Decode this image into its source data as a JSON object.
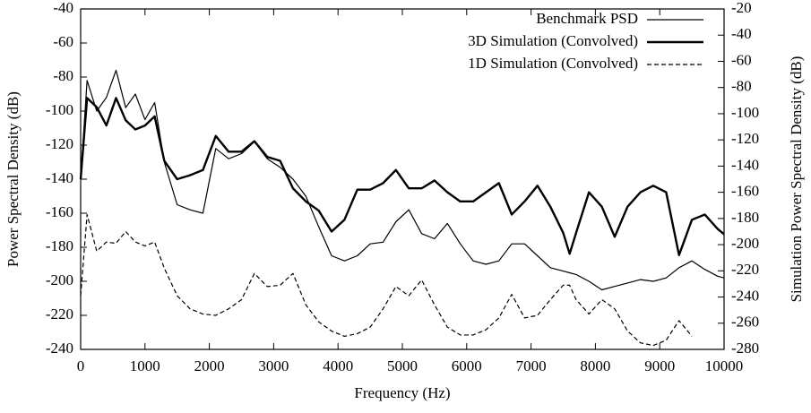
{
  "chart_data": {
    "type": "line",
    "xlabel": "Frequency (Hz)",
    "ylabel": "Power Spectral Density (dB)",
    "y2label": "Simulation Power Spectral Density (dB)",
    "x": [
      0,
      100,
      250,
      400,
      550,
      700,
      850,
      1000,
      1150,
      1300,
      1500,
      1700,
      1900,
      2100,
      2300,
      2500,
      2700,
      2900,
      3100,
      3300,
      3500,
      3700,
      3900,
      4100,
      4300,
      4500,
      4700,
      4900,
      5100,
      5300,
      5500,
      5700,
      5900,
      6100,
      6300,
      6500,
      6700,
      6900,
      7100,
      7300,
      7500,
      7600,
      7700,
      7900,
      8100,
      8300,
      8500,
      8700,
      8900,
      9100,
      9300,
      9500,
      9700,
      9900,
      10000
    ],
    "series": [
      {
        "name": "Benchmark PSD",
        "color": "#000000",
        "width": 1.2,
        "dash": "none",
        "axis": "y",
        "values": [
          -140,
          -82,
          -100,
          -92,
          -76,
          -98,
          -90,
          -105,
          -95,
          -130,
          -155,
          -158,
          -160,
          -122,
          -128,
          -125,
          -118,
          -128,
          -133,
          -140,
          -150,
          -168,
          -185,
          -188,
          -185,
          -178,
          -177,
          -165,
          -158,
          -172,
          -175,
          -166,
          -178,
          -188,
          -190,
          -188,
          -178,
          -178,
          -185,
          -192,
          -194,
          -195,
          -196,
          -200,
          -205,
          -203,
          -201,
          -199,
          -200,
          -198,
          -192,
          -188,
          -193,
          -197,
          -198
        ]
      },
      {
        "name": "3D Simulation (Convolved)",
        "color": "#000000",
        "width": 2.4,
        "dash": "none",
        "axis": "y2",
        "values": [
          -150,
          -88,
          -95,
          -109,
          -88,
          -105,
          -112,
          -109,
          -102,
          -136,
          -150,
          -147,
          -143,
          -117,
          -129,
          -129,
          -121,
          -133,
          -136,
          -157,
          -167,
          -174,
          -190,
          -181,
          -158,
          -158,
          -153,
          -143,
          -157,
          -157,
          -151,
          -160,
          -167,
          -167,
          -160,
          -153,
          -177,
          -167,
          -155,
          -171,
          -191,
          -207,
          -191,
          -160,
          -171,
          -194,
          -171,
          -160,
          -155,
          -160,
          -208,
          -181,
          -177,
          -188,
          -192
        ]
      },
      {
        "name": "1D Simulation (Convolved)",
        "color": "#000000",
        "width": 1.2,
        "dash": "5,3",
        "axis": "y2",
        "values": [
          -239,
          -177,
          -205,
          -198,
          -199,
          -190,
          -198,
          -201,
          -198,
          -218,
          -239,
          -249,
          -253,
          -254,
          -249,
          -242,
          -222,
          -232,
          -231,
          -222,
          -246,
          -259,
          -266,
          -270,
          -268,
          -263,
          -249,
          -232,
          -239,
          -227,
          -246,
          -263,
          -269,
          -269,
          -265,
          -256,
          -238,
          -256,
          -254,
          -242,
          -231,
          -231,
          -242,
          -253,
          -242,
          -249,
          -266,
          -275,
          -277,
          -273,
          -258,
          -270,
          null,
          null,
          null
        ]
      }
    ],
    "xlim": [
      0,
      10000
    ],
    "xticks": [
      0,
      1000,
      2000,
      3000,
      4000,
      5000,
      6000,
      7000,
      8000,
      9000,
      10000
    ],
    "ylim": [
      -240,
      -40
    ],
    "yticks": [
      -240,
      -220,
      -200,
      -180,
      -160,
      -140,
      -120,
      -100,
      -80,
      -60,
      -40
    ],
    "y2lim": [
      -280,
      -20
    ],
    "y2ticks": [
      -280,
      -260,
      -240,
      -220,
      -200,
      -180,
      -160,
      -140,
      -120,
      -100,
      -80,
      -60,
      -40,
      -20
    ],
    "legend": "top-right",
    "grid": false
  }
}
